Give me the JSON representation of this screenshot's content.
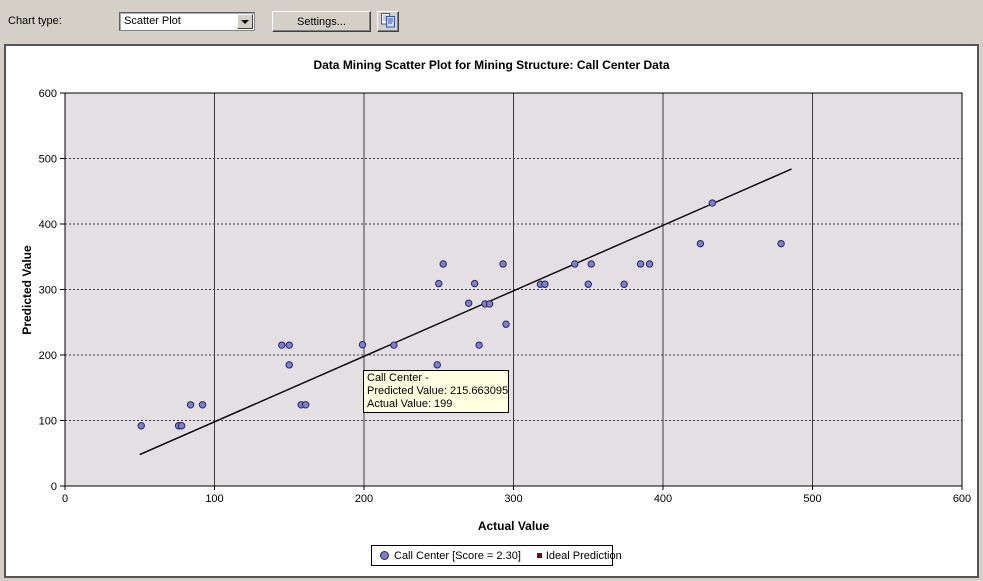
{
  "toolbar": {
    "chart_type_label": "Chart type:",
    "chart_type_value": "Scatter Plot",
    "settings_button": "Settings..."
  },
  "chart_data": {
    "type": "scatter",
    "title": "Data Mining Scatter Plot for Mining Structure: Call Center Data",
    "xlabel": "Actual Value",
    "ylabel": "Predicted Value",
    "xlim": [
      0,
      600
    ],
    "ylim": [
      0,
      600
    ],
    "x_ticks": [
      0,
      100,
      200,
      300,
      400,
      500,
      600
    ],
    "y_ticks": [
      0,
      100,
      200,
      300,
      400,
      500,
      600
    ],
    "grid": {
      "vertical": "solid",
      "horizontal": "dashed"
    },
    "legend_position": "bottom-center",
    "series": [
      {
        "name": "Call Center [Score = 2.30]",
        "type": "scatter",
        "marker": "circle",
        "marker_color": "#7d81c9",
        "marker_border": "#26266a",
        "points": [
          [
            51,
            92
          ],
          [
            76,
            92
          ],
          [
            78,
            92
          ],
          [
            84,
            124
          ],
          [
            92,
            124
          ],
          [
            158,
            124
          ],
          [
            161,
            124
          ],
          [
            150,
            185
          ],
          [
            249,
            185
          ],
          [
            145,
            215
          ],
          [
            150,
            215
          ],
          [
            199,
            215.663095
          ],
          [
            220,
            215
          ],
          [
            277,
            215
          ],
          [
            295,
            247
          ],
          [
            270,
            279
          ],
          [
            281,
            278
          ],
          [
            284,
            278
          ],
          [
            250,
            309
          ],
          [
            274,
            309
          ],
          [
            318,
            308
          ],
          [
            321,
            308
          ],
          [
            350,
            308
          ],
          [
            374,
            308
          ],
          [
            253,
            339
          ],
          [
            293,
            339
          ],
          [
            341,
            339
          ],
          [
            352,
            339
          ],
          [
            385,
            339
          ],
          [
            391,
            339
          ],
          [
            425,
            370
          ],
          [
            479,
            370
          ],
          [
            433,
            432
          ]
        ]
      },
      {
        "name": "Ideal Prediction",
        "type": "line",
        "color": "#000000",
        "points": [
          [
            50,
            48
          ],
          [
            486,
            484
          ]
        ]
      }
    ]
  },
  "tooltip": {
    "line1": "Call Center -",
    "line2": "Predicted Value: 215.663095",
    "line3": "Actual Value: 199",
    "anchor_point": {
      "actual": 199,
      "predicted": 215.663095
    }
  },
  "legend": {
    "items": [
      {
        "label": "Call Center [Score = 2.30]",
        "marker": "circle",
        "color": "#7d81c9"
      },
      {
        "label": "Ideal Prediction",
        "marker": "square",
        "color": "#6e0f0f"
      }
    ]
  },
  "colors": {
    "toolbar_bg": "#d4d0c8",
    "panel_bg": "#ffffff",
    "plot_bg": "#e3dfe3",
    "grid": "#3c3c3c",
    "axis": "#000000",
    "point_fill": "#7d81c9",
    "point_border": "#26266a",
    "ideal_line": "#000000",
    "tooltip_bg": "#ffffe1"
  }
}
